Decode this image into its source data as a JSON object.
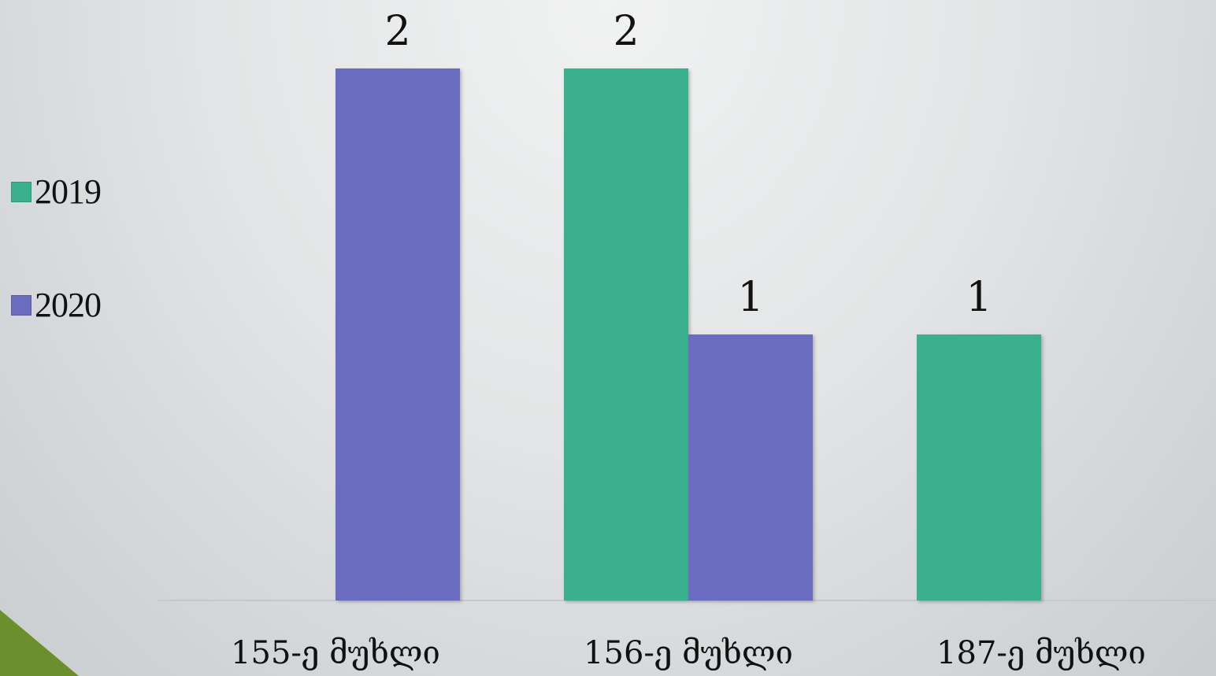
{
  "chart_data": {
    "type": "bar",
    "categories": [
      "155-ე მუხლი",
      "156-ე მუხლი",
      "187-ე მუხლი"
    ],
    "series": [
      {
        "name": "2019",
        "color": "#3bb08f",
        "values": [
          null,
          2,
          1
        ]
      },
      {
        "name": "2020",
        "color": "#6a6cc0",
        "values": [
          2,
          1,
          null
        ]
      }
    ],
    "ylim": [
      0,
      2
    ],
    "grid": false,
    "legend_position": "left"
  }
}
